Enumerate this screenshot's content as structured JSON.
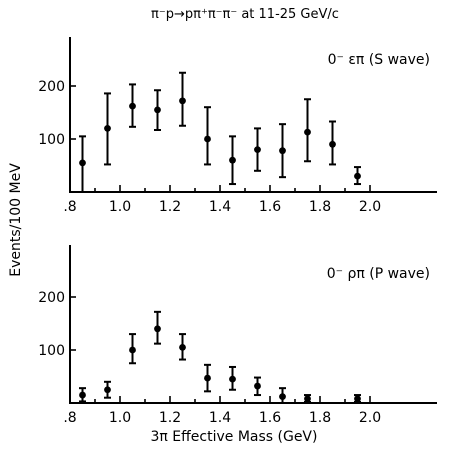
{
  "title": "π⁻p→pπ⁺π⁻π⁻ at 11-25 GeV/c",
  "ylabel": "Events/100 MeV",
  "xlabel": "3π Effective Mass (GeV)",
  "chart_data": [
    {
      "type": "scatter",
      "panel": "top",
      "annotation": "0⁻ επ (S wave)",
      "xlim": [
        0.8,
        2.2
      ],
      "ylim": [
        0,
        300
      ],
      "x_ticks": [
        0.8,
        1.0,
        1.2,
        1.4,
        1.6,
        1.8,
        2.0
      ],
      "x_tick_labels": [
        ".8",
        "1.0",
        "1.2",
        "1.4",
        "1.6",
        "1.8",
        "2.0"
      ],
      "y_ticks": [
        100,
        200
      ],
      "y_tick_labels": [
        "100",
        "200"
      ],
      "points": [
        {
          "x": 0.85,
          "y": 55,
          "lo": 0,
          "hi": 105
        },
        {
          "x": 0.95,
          "y": 120,
          "lo": 52,
          "hi": 186
        },
        {
          "x": 1.05,
          "y": 162,
          "lo": 123,
          "hi": 203
        },
        {
          "x": 1.15,
          "y": 155,
          "lo": 117,
          "hi": 192
        },
        {
          "x": 1.25,
          "y": 172,
          "lo": 125,
          "hi": 225
        },
        {
          "x": 1.35,
          "y": 100,
          "lo": 52,
          "hi": 160
        },
        {
          "x": 1.45,
          "y": 60,
          "lo": 15,
          "hi": 105
        },
        {
          "x": 1.55,
          "y": 80,
          "lo": 40,
          "hi": 120
        },
        {
          "x": 1.65,
          "y": 78,
          "lo": 28,
          "hi": 128
        },
        {
          "x": 1.75,
          "y": 113,
          "lo": 58,
          "hi": 175
        },
        {
          "x": 1.85,
          "y": 90,
          "lo": 52,
          "hi": 133
        },
        {
          "x": 1.95,
          "y": 30,
          "lo": 15,
          "hi": 47
        }
      ]
    },
    {
      "type": "scatter",
      "panel": "bottom",
      "annotation": "0⁻ ρπ (P wave)",
      "xlim": [
        0.8,
        2.2
      ],
      "ylim": [
        0,
        300
      ],
      "x_ticks": [
        0.8,
        1.0,
        1.2,
        1.4,
        1.6,
        1.8,
        2.0
      ],
      "x_tick_labels": [
        ".8",
        "1.0",
        "1.2",
        "1.4",
        "1.6",
        "1.8",
        "2.0"
      ],
      "y_ticks": [
        100,
        200
      ],
      "y_tick_labels": [
        "100",
        "200"
      ],
      "points": [
        {
          "x": 0.85,
          "y": 15,
          "lo": 3,
          "hi": 28
        },
        {
          "x": 0.95,
          "y": 25,
          "lo": 10,
          "hi": 40
        },
        {
          "x": 1.05,
          "y": 100,
          "lo": 75,
          "hi": 130
        },
        {
          "x": 1.15,
          "y": 140,
          "lo": 112,
          "hi": 172
        },
        {
          "x": 1.25,
          "y": 105,
          "lo": 82,
          "hi": 130
        },
        {
          "x": 1.35,
          "y": 47,
          "lo": 22,
          "hi": 72
        },
        {
          "x": 1.45,
          "y": 45,
          "lo": 25,
          "hi": 68
        },
        {
          "x": 1.55,
          "y": 32,
          "lo": 15,
          "hi": 48
        },
        {
          "x": 1.65,
          "y": 12,
          "lo": 0,
          "hi": 28
        },
        {
          "x": 1.75,
          "y": 8,
          "lo": 2,
          "hi": 15
        },
        {
          "x": 1.95,
          "y": 8,
          "lo": 2,
          "hi": 15
        }
      ]
    }
  ]
}
